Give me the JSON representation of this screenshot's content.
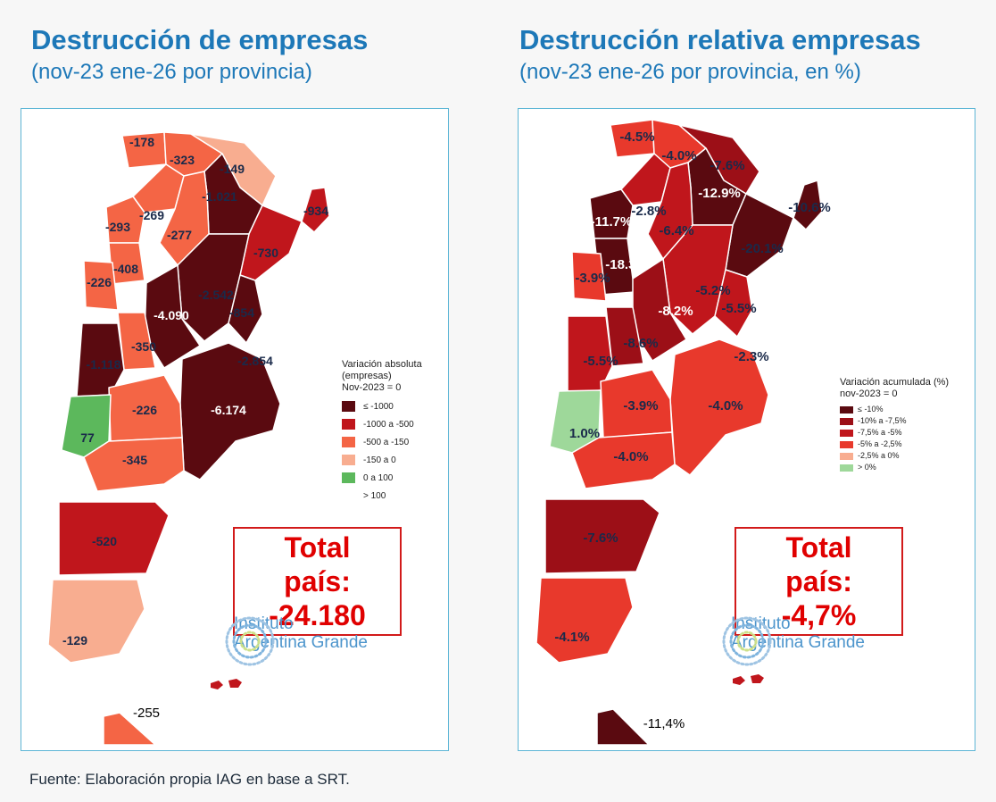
{
  "left": {
    "title": "Destrucción de empresas",
    "subtitle": "(nov-23 ene-26 por provincia)",
    "legend": {
      "title_lines": [
        "Variación absoluta",
        "(empresas)",
        "Nov-2023 = 0"
      ],
      "items": [
        {
          "label": "≤ -1000",
          "color": "#5a0a10"
        },
        {
          "label": "-1000 a -500",
          "color": "#c0161c"
        },
        {
          "label": "-500 a -150",
          "color": "#f46545"
        },
        {
          "label": "-150 a 0",
          "color": "#f8ad90"
        },
        {
          "label": "0 a 100",
          "color": "#5cb85c"
        },
        {
          "label": "> 100",
          "color": "none"
        }
      ]
    },
    "total_label": "Total país:",
    "total_value": "-24.180",
    "province_labels": [
      "-178",
      "-323",
      "-149",
      "-1.021",
      "-934",
      "-269",
      "-293",
      "-277",
      "-730",
      "-408",
      "-226",
      "-2.542",
      "-854",
      "-4.090",
      "-350",
      "-1.118",
      "-2.854",
      "-226",
      "-6.174",
      "77",
      "-345",
      "-520",
      "-129",
      "-255"
    ]
  },
  "right": {
    "title": "Destrucción relativa empresas",
    "subtitle": "(nov-23 ene-26 por provincia, en %)",
    "legend": {
      "title_lines": [
        "Variación acumulada (%)",
        "nov-2023 = 0"
      ],
      "items": [
        {
          "label": "≤ -10%",
          "color": "#5a0a10"
        },
        {
          "label": "-10% a -7,5%",
          "color": "#9c0f17"
        },
        {
          "label": "-7,5% a -5%",
          "color": "#c0161c"
        },
        {
          "label": "-5% a -2,5%",
          "color": "#e8392c"
        },
        {
          "label": "-2,5% a 0%",
          "color": "#f8ad90"
        },
        {
          "label": "> 0%",
          "color": "#9ed89a"
        }
      ]
    },
    "total_label": "Total país:",
    "total_value": "-4,7%",
    "province_labels": [
      "-4.5%",
      "-4.0%",
      "-7.6%",
      "-12.9%",
      "-10.6%",
      "-2.8%",
      "-11.7%",
      "-6.4%",
      "-20.1%",
      "-18.3%",
      "-3.9%",
      "-5.2%",
      "-5.5%",
      "-8.2%",
      "-8.6%",
      "-5.5%",
      "-2.3%",
      "-3.9%",
      "-4.0%",
      "1.0%",
      "-4.0%",
      "-7.6%",
      "-4.1%",
      "-11,4%"
    ]
  },
  "logo": {
    "line1": "Instituto",
    "line2": "Argentina Grande"
  },
  "source": "Fuente: Elaboración propia IAG en base a SRT."
}
